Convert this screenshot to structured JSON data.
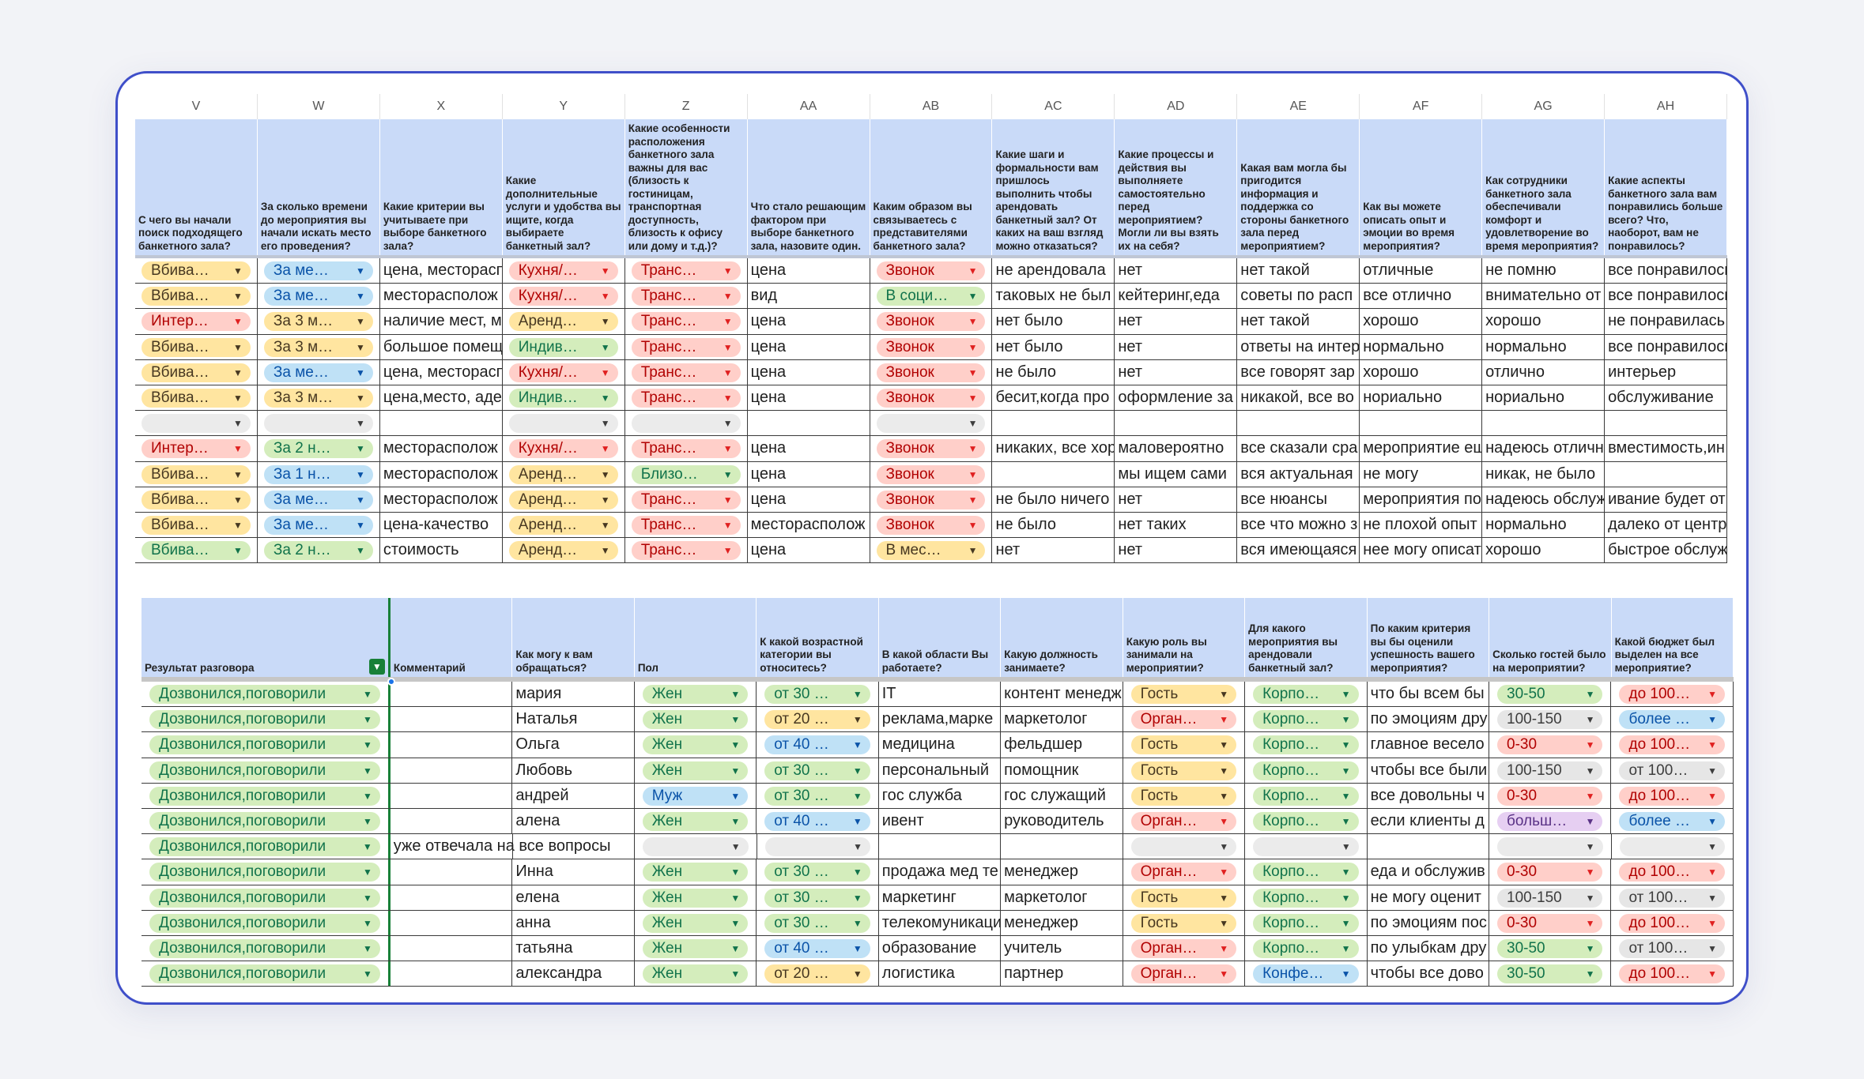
{
  "sheet1": {
    "columns": [
      "V",
      "W",
      "X",
      "Y",
      "Z",
      "AA",
      "AB",
      "AC",
      "AD",
      "AE",
      "AF",
      "AG",
      "AH"
    ],
    "headers": [
      "С чего вы начали поиск подходящего банкетного зала?",
      "За сколько времени до мероприятия вы начали искать место его проведения?",
      "Какие критерии вы учитываете при выборе банкетного зала?",
      "Какие дополнительные услуги и удобства вы ищите, когда выбираете банкетный зал?",
      "Какие особенности расположения банкетного зала важны для вас (близость к гостиницам, транспортная доступность, близость к офису или дому и т.д.)?",
      "Что стало решающим фактором при выборе банкетного зала, назовите один.",
      "Каким образом вы связываетесь с представителями банкетного зала?",
      "Какие шаги и формальности вам пришлось выполнить чтобы арендовать банкетный зал? От каких на ваш взгляд можно отказаться?",
      "Какие процессы и действия вы выполняете самостоятельно перед мероприятием? Могли ли вы взять их на себя?",
      "Какая вам могла бы пригодится информация и поддержка со стороны банкетного зала перед мероприятием?",
      "Как вы можете описать опыт и эмоции во время мероприятия?",
      "Как сотрудники банкетного зала обеспечивали комфорт и удовлетворение во время мероприятия?",
      "Какие аспекты банкетного зала вам понравились больше всего? Что, наоборот, вам не понравилось?"
    ],
    "rows": [
      {
        "v": "Вбива…",
        "w": "За ме…",
        "x": "цена, месторасп",
        "y": "Кухня/…",
        "z": "Транс…",
        "aa": "цена",
        "ab": "Звонок",
        "ac": "не арендовала",
        "ad": "нет",
        "ae": "нет такой",
        "af": "отличные",
        "ag": "не помню",
        "ah": "все понравилось"
      },
      {
        "v": "Вбива…",
        "w": "За ме…",
        "x": "месторасполож",
        "y": "Кухня/…",
        "z": "Транс…",
        "aa": "вид",
        "ab": "В соци…",
        "ac": "таковых не был",
        "ad": "кейтеринг,еда",
        "ae": "советы по расп",
        "af": "все отлично",
        "ag": "внимательно от",
        "ah": "все понравилось"
      },
      {
        "v": "Интер…",
        "w": "За 3 м…",
        "x": "наличие мест, м",
        "y": "Аренд…",
        "z": "Транс…",
        "aa": "цена",
        "ab": "Звонок",
        "ac": "нет было",
        "ad": "нет",
        "ae": "нет такой",
        "af": "хорошо",
        "ag": "хорошо",
        "ah": "не понравилась"
      },
      {
        "v": "Вбива…",
        "w": "За 3 м…",
        "x": "большое помещ",
        "y": "Индив…",
        "z": "Транс…",
        "aa": "цена",
        "ab": "Звонок",
        "ac": "нет было",
        "ad": "нет",
        "ae": "ответы на интер",
        "af": "нормально",
        "ag": "нормально",
        "ah": "все понравилось"
      },
      {
        "v": "Вбива…",
        "w": "За ме…",
        "x": "цена, месторасп",
        "y": "Кухня/…",
        "z": "Транс…",
        "aa": "цена",
        "ab": "Звонок",
        "ac": "не было",
        "ad": "нет",
        "ae": "все говорят зар",
        "af": "хорошо",
        "ag": "отлично",
        "ah": "интерьер"
      },
      {
        "v": "Вбива…",
        "w": "За 3 м…",
        "x": "цена,место, аде",
        "y": "Индив…",
        "z": "Транс…",
        "aa": "цена",
        "ab": "Звонок",
        "ac": "бесит,когда про",
        "ad": "оформление за",
        "ae": "никакой, все во",
        "af": "нориально",
        "ag": "нориально",
        "ah": "обслуживание"
      },
      {
        "v": "",
        "w": "",
        "x": "",
        "y": "",
        "z": "",
        "aa": "",
        "ab": "",
        "ac": "",
        "ad": "",
        "ae": "",
        "af": "",
        "ag": "",
        "ah": ""
      },
      {
        "v": "Интер…",
        "w": "За 2 н…",
        "x": "месторасполож",
        "y": "Кухня/…",
        "z": "Транс…",
        "aa": "цена",
        "ab": "Звонок",
        "ac": "никаких, все хор",
        "ad": "маловероятно",
        "ae": "все сказали сра",
        "af": "мероприятие ещ",
        "ag": "надеюсь отличн",
        "ah": "вместимость,ин"
      },
      {
        "v": "Вбива…",
        "w": "За 1 н…",
        "x": "месторасполож",
        "y": "Аренд…",
        "z": "Близо…",
        "aa": "цена",
        "ab": "Звонок",
        "ac": "",
        "ad": "мы ищем сами",
        "ae": "вся актуальная",
        "af": "не могу",
        "ag": "никак, не было",
        "ah": ""
      },
      {
        "v": "Вбива…",
        "w": "За ме…",
        "x": "месторасполож",
        "y": "Аренд…",
        "z": "Транс…",
        "aa": "цена",
        "ab": "Звонок",
        "ac": "не было ничего",
        "ad": "нет",
        "ae": "все нюансы",
        "af": "мероприятия по",
        "ag": "надеюсь обслуж",
        "ah": "ивание будет от"
      },
      {
        "v": "Вбива…",
        "w": "За ме…",
        "x": "цена-качество",
        "y": "Аренд…",
        "z": "Транс…",
        "aa": "месторасполож",
        "ab": "Звонок",
        "ac": "не было",
        "ad": "нет таких",
        "ae": "все что можно з",
        "af": "не плохой опыт",
        "ag": "нормально",
        "ah": "далеко от центр"
      },
      {
        "v": "Вбива…",
        "w": "За 2 н…",
        "x": "стоимость",
        "y": "Аренд…",
        "z": "Транс…",
        "aa": "цена",
        "ab": "В мес…",
        "ac": "нет",
        "ad": "нет",
        "ae": "вся имеющаяся",
        "af": "нее могу описат",
        "ag": "хорошо",
        "ah": "быстрое обслуж"
      }
    ]
  },
  "sheet2": {
    "headers": [
      "Результат разговора",
      "Комментарий",
      "Как могу к вам обращаться?",
      "Пол",
      "К какой возрастной категории вы относитесь?",
      "В какой области Вы работаете?",
      "Какую должность занимаете?",
      "Какую роль вы занимали на мероприятии?",
      "Для какого мероприятия вы арендовали банкетный зал?",
      "По каким критерия вы бы оценили успешность вашего мероприятия?",
      "Сколько гостей было на мероприятии?",
      "Какой бюджет был выделен на все мероприятие?"
    ],
    "rows": [
      {
        "res": "Дозвонился,поговорили",
        "com": "",
        "name": "мария",
        "sex": "Жен",
        "age": "от 30 …",
        "field": "IT",
        "pos": "контент менедж",
        "role": "Гость",
        "event": "Корпо…",
        "crit": "что бы всем бы",
        "guests": "30-50",
        "budget": "до 100…"
      },
      {
        "res": "Дозвонился,поговорили",
        "com": "",
        "name": "Наталья",
        "sex": "Жен",
        "age": "от 20 …",
        "field": "реклама,марке",
        "pos": "маркетолог",
        "role": "Орган…",
        "event": "Корпо…",
        "crit": "по эмоциям дру",
        "guests": "100-150",
        "budget": "более …"
      },
      {
        "res": "Дозвонился,поговорили",
        "com": "",
        "name": "Ольга",
        "sex": "Жен",
        "age": "от 40 …",
        "field": "медицина",
        "pos": "фельдшер",
        "role": "Гость",
        "event": "Корпо…",
        "crit": "главное весело",
        "guests": "0-30",
        "budget": "до 100…"
      },
      {
        "res": "Дозвонился,поговорили",
        "com": "",
        "name": "Любовь",
        "sex": "Жен",
        "age": "от 30 …",
        "field": "персональный",
        "pos": "помощник",
        "role": "Гость",
        "event": "Корпо…",
        "crit": "чтобы все были",
        "guests": "100-150",
        "budget": "от 100…"
      },
      {
        "res": "Дозвонился,поговорили",
        "com": "",
        "name": "андрей",
        "sex": "Муж",
        "age": "от 30 …",
        "field": "гос служба",
        "pos": "гос служащий",
        "role": "Гость",
        "event": "Корпо…",
        "crit": "все довольны ч",
        "guests": "0-30",
        "budget": "до 100…"
      },
      {
        "res": "Дозвонился,поговорили",
        "com": "",
        "name": "алена",
        "sex": "Жен",
        "age": "от 40 …",
        "field": "ивент",
        "pos": "руководитель",
        "role": "Орган…",
        "event": "Корпо…",
        "crit": "если клиенты д",
        "guests": "больш…",
        "budget": "более …"
      },
      {
        "res": "Дозвонился,поговорили",
        "com": "уже отвечала на все вопросы",
        "name": "",
        "sex": "",
        "age": "",
        "field": "",
        "pos": "",
        "role": "",
        "event": "",
        "crit": "",
        "guests": "",
        "budget": ""
      },
      {
        "res": "Дозвонился,поговорили",
        "com": "",
        "name": "Инна",
        "sex": "Жен",
        "age": "от 30 …",
        "field": "продажа мед те",
        "pos": "менеджер",
        "role": "Орган…",
        "event": "Корпо…",
        "crit": "еда и обслужив",
        "guests": "0-30",
        "budget": "до 100…"
      },
      {
        "res": "Дозвонился,поговорили",
        "com": "",
        "name": "елена",
        "sex": "Жен",
        "age": "от 30 …",
        "field": "маркетинг",
        "pos": "маркетолог",
        "role": "Гость",
        "event": "Корпо…",
        "crit": "не могу оценит",
        "guests": "100-150",
        "budget": "от 100…"
      },
      {
        "res": "Дозвонился,поговорили",
        "com": "",
        "name": "анна",
        "sex": "Жен",
        "age": "от 30 …",
        "field": "телекомуникаци",
        "pos": "менеджер",
        "role": "Гость",
        "event": "Корпо…",
        "crit": "по эмоциям пос",
        "guests": "0-30",
        "budget": "до 100…"
      },
      {
        "res": "Дозвонился,поговорили",
        "com": "",
        "name": "татьяна",
        "sex": "Жен",
        "age": "от 40 …",
        "field": "образование",
        "pos": "учитель",
        "role": "Орган…",
        "event": "Корпо…",
        "crit": "по улыбкам дру",
        "guests": "30-50",
        "budget": "от 100…"
      },
      {
        "res": "Дозвонился,поговорили",
        "com": "",
        "name": "александра",
        "sex": "Жен",
        "age": "от 20 …",
        "field": "логистика",
        "pos": "партнер",
        "role": "Орган…",
        "event": "Конфе…",
        "crit": "чтобы все дово",
        "guests": "30-50",
        "budget": "до 100…"
      }
    ]
  },
  "colors": {
    "card_border": "#3f4fc9",
    "header_bg": "#c9daf8",
    "chip_yellow": "#ffe5a0",
    "chip_blue": "#bfe1f6",
    "chip_red": "#ffcfc9",
    "chip_green": "#d4edbc",
    "chip_gray": "#e6e6e6",
    "chip_purple": "#e6cff2",
    "filter_green": "#188038"
  },
  "icons": {
    "dropdown": "chevron-down-icon",
    "filter": "filter-icon"
  }
}
